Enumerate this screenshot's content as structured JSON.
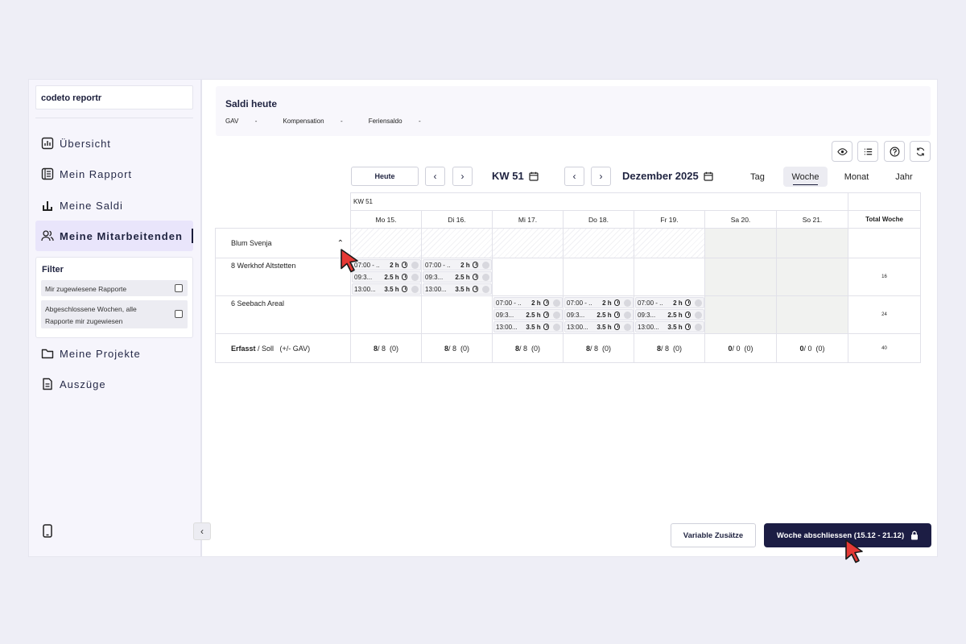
{
  "sidebar": {
    "brand": "codeto reportr",
    "nav": [
      {
        "label": "Übersicht",
        "icon": "chart-icon"
      },
      {
        "label": "Mein Rapport",
        "icon": "document-list-icon"
      },
      {
        "label": "Meine Saldi",
        "icon": "bar-chart-icon"
      },
      {
        "label": "Meine Mitarbeitenden",
        "icon": "users-icon",
        "active": true
      },
      {
        "label": "Meine Projekte",
        "icon": "folder-icon"
      },
      {
        "label": "Auszüge",
        "icon": "file-icon"
      }
    ],
    "filter": {
      "title": "Filter",
      "options": [
        "Mir zugewiesene Rapporte",
        "Abgeschlossene Wochen, alle Rapporte mir zugewiesen"
      ]
    }
  },
  "saldi": {
    "title": "Saldi heute",
    "items": [
      "GAV",
      "Kompensation",
      "Feriensaldo"
    ],
    "value": "-"
  },
  "toolbar": {
    "today": "Heute",
    "week": "KW 51",
    "month": "Dezember 2025",
    "views": [
      "Tag",
      "Woche",
      "Monat",
      "Jahr"
    ],
    "active_view": "Woche"
  },
  "grid": {
    "week_label": "KW 51",
    "days": [
      "Mo 15.",
      "Di 16.",
      "Mi 17.",
      "Do 18.",
      "Fr 19.",
      "Sa 20.",
      "So 21."
    ],
    "total_header": "Total Woche",
    "employee": "Blum Svenja",
    "projects": [
      {
        "name": "8 Werkhof Altstetten",
        "total": "16",
        "days": [
          [
            {
              "time": "07:00 - ...",
              "dur": "2 h"
            },
            {
              "time": "09:3...",
              "dur": "2.5 h"
            },
            {
              "time": "13:00...",
              "dur": "3.5 h"
            }
          ],
          [
            {
              "time": "07:00 - ...",
              "dur": "2 h"
            },
            {
              "time": "09:3...",
              "dur": "2.5 h"
            },
            {
              "time": "13:00...",
              "dur": "3.5 h"
            }
          ],
          [],
          [],
          [],
          [],
          []
        ]
      },
      {
        "name": "6 Seebach Areal",
        "total": "24",
        "days": [
          [],
          [],
          [
            {
              "time": "07:00 - ...",
              "dur": "2 h"
            },
            {
              "time": "09:3...",
              "dur": "2.5 h"
            },
            {
              "time": "13:00...",
              "dur": "3.5 h"
            }
          ],
          [
            {
              "time": "07:00 - ...",
              "dur": "2 h"
            },
            {
              "time": "09:3...",
              "dur": "2.5 h"
            },
            {
              "time": "13:00...",
              "dur": "3.5 h"
            }
          ],
          [
            {
              "time": "07:00 - ...",
              "dur": "2 h"
            },
            {
              "time": "09:3...",
              "dur": "2.5 h"
            },
            {
              "time": "13:00...",
              "dur": "3.5 h"
            }
          ],
          [],
          []
        ]
      }
    ],
    "summary": {
      "label_bold": "Erfasst",
      "label_rest": " / Soll",
      "label_extra": "(+/- GAV)",
      "cells": [
        {
          "erfasst": "8",
          "soll": "/ 8",
          "gav": "(0)"
        },
        {
          "erfasst": "8",
          "soll": "/ 8",
          "gav": "(0)"
        },
        {
          "erfasst": "8",
          "soll": "/ 8",
          "gav": "(0)"
        },
        {
          "erfasst": "8",
          "soll": "/ 8",
          "gav": "(0)"
        },
        {
          "erfasst": "8",
          "soll": "/ 8",
          "gav": "(0)"
        },
        {
          "erfasst": "0",
          "soll": "/ 0",
          "gav": "(0)"
        },
        {
          "erfasst": "0",
          "soll": "/ 0",
          "gav": "(0)"
        }
      ],
      "total": "40"
    }
  },
  "footer": {
    "variable": "Variable Zusätze",
    "close_week": "Woche abschliessen (15.12 - 21.12)"
  }
}
